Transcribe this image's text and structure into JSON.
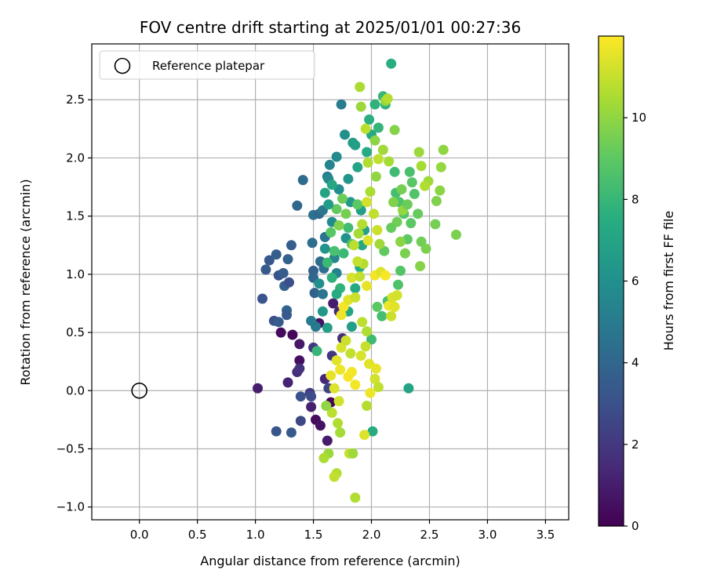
{
  "chart_data": {
    "type": "scatter",
    "title": "FOV centre drift starting at 2025/01/01 00:27:36",
    "xlabel": "Angular distance from reference (arcmin)",
    "ylabel": "Rotation from reference (arcmin)",
    "xlim": [
      -0.41,
      3.7
    ],
    "ylim": [
      -1.11,
      2.98
    ],
    "xticks": [
      "0.0",
      "0.5",
      "1.0",
      "1.5",
      "2.0",
      "2.5",
      "3.0",
      "3.5"
    ],
    "xtick_values": [
      0,
      0.5,
      1.0,
      1.5,
      2.0,
      2.5,
      3.0,
      3.5
    ],
    "yticks": [
      "−1.0",
      "−0.5",
      "0.0",
      "0.5",
      "1.0",
      "1.5",
      "2.0",
      "2.5"
    ],
    "ytick_values": [
      -1.0,
      -0.5,
      0,
      0.5,
      1.0,
      1.5,
      2.0,
      2.5
    ],
    "grid": true,
    "legend": {
      "placement": "top-left",
      "entries": [
        {
          "label": "Reference platepar",
          "marker": "open-circle"
        }
      ]
    },
    "reference_point": {
      "x": 0.0,
      "y": 0.0
    },
    "colorbar": {
      "label": "Hours from first FF file",
      "colormap": "viridis",
      "range": [
        0,
        12
      ],
      "ticks": [
        "0",
        "2",
        "4",
        "6",
        "8",
        "10"
      ],
      "tick_values": [
        0,
        2,
        4,
        6,
        8,
        10
      ]
    },
    "points": [
      [
        1.02,
        0.02,
        1.0
      ],
      [
        1.22,
        0.5,
        0.3
      ],
      [
        1.32,
        0.48,
        0.2
      ],
      [
        1.38,
        0.4,
        0.8
      ],
      [
        1.28,
        0.07,
        1.2
      ],
      [
        1.38,
        0.26,
        0.5
      ],
      [
        1.36,
        0.16,
        1.5
      ],
      [
        1.38,
        0.19,
        1.8
      ],
      [
        1.5,
        0.37,
        2.0
      ],
      [
        1.47,
        -0.02,
        2.2
      ],
      [
        1.52,
        -0.25,
        0.4
      ],
      [
        1.56,
        -0.3,
        0.6
      ],
      [
        1.62,
        -0.43,
        0.9
      ],
      [
        1.48,
        -0.14,
        1.1
      ],
      [
        1.6,
        0.1,
        1.3
      ],
      [
        1.65,
        -0.1,
        0.2
      ],
      [
        1.67,
        0.75,
        0.9
      ],
      [
        1.55,
        0.58,
        0.6
      ],
      [
        1.72,
        0.68,
        1.4
      ],
      [
        1.75,
        0.45,
        1.6
      ],
      [
        1.66,
        0.3,
        2.0
      ],
      [
        1.63,
        0.02,
        2.4
      ],
      [
        1.48,
        -0.05,
        2.8
      ],
      [
        1.39,
        -0.05,
        3.0
      ],
      [
        1.18,
        -0.35,
        3.2
      ],
      [
        1.31,
        -0.36,
        3.4
      ],
      [
        1.39,
        -0.26,
        2.6
      ],
      [
        1.12,
        1.12,
        3.3
      ],
      [
        1.09,
        1.04,
        3.4
      ],
      [
        1.18,
        1.17,
        3.6
      ],
      [
        1.2,
        0.99,
        3.1
      ],
      [
        1.24,
        1.01,
        3.5
      ],
      [
        1.25,
        0.9,
        3.8
      ],
      [
        1.29,
        0.93,
        2.9
      ],
      [
        1.28,
        1.13,
        3.7
      ],
      [
        1.06,
        0.79,
        3.2
      ],
      [
        1.16,
        0.6,
        3.0
      ],
      [
        1.2,
        0.59,
        3.5
      ],
      [
        1.27,
        0.69,
        3.9
      ],
      [
        1.27,
        0.65,
        3.4
      ],
      [
        1.31,
        1.25,
        3.6
      ],
      [
        1.36,
        1.59,
        4.0
      ],
      [
        1.41,
        1.81,
        4.2
      ],
      [
        1.5,
        1.03,
        3.8
      ],
      [
        1.5,
        0.97,
        4.1
      ],
      [
        1.51,
        0.84,
        3.7
      ],
      [
        1.49,
        1.27,
        4.3
      ],
      [
        1.5,
        1.51,
        4.5
      ],
      [
        1.55,
        1.52,
        4.1
      ],
      [
        1.58,
        1.55,
        4.8
      ],
      [
        1.6,
        1.32,
        4.6
      ],
      [
        1.59,
        1.05,
        4.4
      ],
      [
        1.58,
        0.83,
        4.7
      ],
      [
        1.48,
        0.6,
        5.0
      ],
      [
        1.52,
        0.55,
        4.9
      ],
      [
        1.56,
        1.11,
        4.3
      ],
      [
        1.62,
        1.84,
        5.2
      ],
      [
        1.64,
        1.94,
        5.4
      ],
      [
        1.63,
        1.82,
        5.6
      ],
      [
        1.66,
        1.45,
        5.8
      ],
      [
        1.68,
        1.14,
        5.5
      ],
      [
        1.7,
        1.01,
        5.3
      ],
      [
        1.72,
        1.73,
        5.9
      ],
      [
        1.7,
        2.01,
        5.7
      ],
      [
        1.74,
        2.46,
        5.1
      ],
      [
        1.77,
        2.2,
        6.0
      ],
      [
        1.8,
        1.82,
        6.3
      ],
      [
        1.82,
        1.62,
        6.5
      ],
      [
        1.78,
        1.31,
        6.1
      ],
      [
        1.84,
        2.13,
        6.6
      ],
      [
        1.86,
        2.11,
        6.8
      ],
      [
        1.88,
        1.92,
        7.0
      ],
      [
        1.91,
        1.55,
        6.7
      ],
      [
        1.94,
        1.38,
        6.9
      ],
      [
        1.92,
        1.25,
        7.2
      ],
      [
        1.96,
        2.05,
        7.4
      ],
      [
        1.98,
        2.33,
        7.6
      ],
      [
        2.0,
        2.2,
        7.3
      ],
      [
        2.03,
        2.46,
        7.7
      ],
      [
        2.06,
        2.26,
        7.9
      ],
      [
        2.1,
        2.53,
        8.0
      ],
      [
        2.12,
        2.46,
        7.8
      ],
      [
        2.17,
        2.81,
        7.5
      ],
      [
        2.2,
        1.88,
        8.2
      ],
      [
        2.21,
        1.7,
        8.4
      ],
      [
        2.24,
        1.62,
        8.6
      ],
      [
        2.28,
        1.52,
        8.8
      ],
      [
        2.33,
        1.88,
        8.5
      ],
      [
        2.35,
        1.79,
        8.9
      ],
      [
        2.31,
        1.3,
        9.0
      ],
      [
        2.4,
        1.52,
        9.2
      ],
      [
        2.43,
        1.28,
        9.4
      ],
      [
        2.47,
        1.22,
        9.6
      ],
      [
        2.42,
        1.07,
        9.8
      ],
      [
        2.55,
        1.43,
        9.5
      ],
      [
        2.56,
        1.63,
        9.7
      ],
      [
        2.59,
        1.72,
        9.9
      ],
      [
        2.62,
        2.07,
        10.0
      ],
      [
        2.6,
        1.92,
        10.1
      ],
      [
        2.73,
        1.34,
        9.6
      ],
      [
        2.41,
        2.05,
        10.2
      ],
      [
        2.43,
        1.93,
        10.4
      ],
      [
        2.49,
        1.8,
        10.3
      ],
      [
        2.46,
        1.76,
        10.6
      ],
      [
        2.32,
        0.02,
        7.0
      ],
      [
        2.01,
        -0.35,
        7.4
      ],
      [
        1.53,
        0.34,
        8.0
      ],
      [
        1.83,
        0.55,
        6.8
      ],
      [
        1.8,
        0.68,
        7.1
      ],
      [
        1.86,
        0.88,
        7.3
      ],
      [
        1.9,
        1.06,
        7.5
      ],
      [
        1.73,
        0.88,
        7.8
      ],
      [
        1.76,
        1.18,
        8.1
      ],
      [
        1.8,
        1.4,
        8.3
      ],
      [
        1.83,
        1.26,
        8.7
      ],
      [
        1.88,
        1.6,
        9.0
      ],
      [
        1.9,
        2.61,
        10.5
      ],
      [
        1.91,
        2.44,
        10.2
      ],
      [
        2.12,
        2.49,
        10.1
      ],
      [
        2.14,
        2.51,
        10.7
      ],
      [
        1.95,
        2.25,
        10.8
      ],
      [
        2.03,
        2.15,
        9.9
      ],
      [
        2.1,
        2.07,
        10.3
      ],
      [
        2.06,
        1.99,
        10.9
      ],
      [
        1.97,
        1.96,
        10.6
      ],
      [
        2.15,
        1.97,
        10.4
      ],
      [
        2.2,
        2.24,
        9.8
      ],
      [
        2.04,
        1.84,
        10.0
      ],
      [
        2.19,
        1.62,
        9.7
      ],
      [
        2.22,
        1.45,
        9.4
      ],
      [
        2.17,
        1.4,
        9.2
      ],
      [
        2.11,
        1.2,
        9.1
      ],
      [
        2.25,
        1.03,
        8.8
      ],
      [
        2.23,
        0.91,
        8.6
      ],
      [
        2.14,
        0.77,
        8.5
      ],
      [
        2.09,
        0.64,
        8.4
      ],
      [
        2.05,
        0.72,
        9.0
      ],
      [
        2.0,
        0.44,
        8.2
      ],
      [
        1.96,
        0.51,
        10.6
      ],
      [
        1.92,
        0.59,
        10.8
      ],
      [
        1.95,
        0.38,
        11.0
      ],
      [
        1.91,
        0.3,
        11.3
      ],
      [
        1.98,
        0.23,
        11.5
      ],
      [
        2.04,
        0.19,
        11.6
      ],
      [
        2.03,
        0.1,
        11.2
      ],
      [
        2.06,
        0.03,
        10.9
      ],
      [
        1.99,
        -0.02,
        11.7
      ],
      [
        1.96,
        -0.13,
        10.7
      ],
      [
        1.94,
        -0.38,
        11.4
      ],
      [
        1.86,
        0.05,
        11.8
      ],
      [
        1.8,
        0.12,
        11.9
      ],
      [
        1.73,
        0.18,
        11.7
      ],
      [
        1.7,
        0.26,
        11.5
      ],
      [
        1.74,
        0.37,
        11.3
      ],
      [
        1.78,
        0.43,
        11.1
      ],
      [
        1.82,
        0.32,
        10.9
      ],
      [
        1.83,
        0.16,
        11.8
      ],
      [
        1.65,
        0.13,
        11.6
      ],
      [
        1.68,
        0.02,
        11.4
      ],
      [
        1.72,
        -0.09,
        11.2
      ],
      [
        1.66,
        -0.19,
        10.8
      ],
      [
        1.71,
        -0.28,
        10.6
      ],
      [
        1.73,
        -0.36,
        10.4
      ],
      [
        1.63,
        -0.54,
        10.2
      ],
      [
        1.61,
        -0.13,
        10.0
      ],
      [
        1.59,
        -0.58,
        10.5
      ],
      [
        1.7,
        -0.71,
        10.7
      ],
      [
        1.68,
        -0.74,
        10.9
      ],
      [
        1.81,
        -0.54,
        11.0
      ],
      [
        1.84,
        -0.54,
        10.3
      ],
      [
        1.86,
        -0.92,
        10.6
      ],
      [
        1.76,
        0.72,
        11.9
      ],
      [
        1.74,
        0.65,
        11.7
      ],
      [
        1.8,
        0.78,
        11.5
      ],
      [
        1.83,
        0.97,
        11.3
      ],
      [
        1.86,
        0.8,
        11.1
      ],
      [
        1.9,
        0.98,
        10.9
      ],
      [
        1.93,
        1.09,
        10.7
      ],
      [
        1.96,
        0.9,
        11.6
      ],
      [
        2.03,
        0.99,
        11.8
      ],
      [
        2.08,
        1.02,
        11.4
      ],
      [
        2.12,
        0.99,
        11.9
      ],
      [
        2.15,
        0.73,
        11.7
      ],
      [
        2.18,
        0.8,
        11.3
      ],
      [
        2.17,
        0.64,
        11.1
      ],
      [
        2.2,
        0.72,
        11.5
      ],
      [
        2.22,
        0.82,
        11.2
      ],
      [
        1.88,
        1.11,
        11.0
      ],
      [
        1.85,
        1.25,
        10.8
      ],
      [
        1.89,
        1.35,
        10.4
      ],
      [
        1.92,
        1.43,
        10.7
      ],
      [
        1.96,
        1.62,
        11.2
      ],
      [
        1.99,
        1.71,
        10.5
      ],
      [
        2.02,
        1.52,
        10.9
      ],
      [
        2.05,
        1.38,
        11.1
      ],
      [
        2.07,
        1.26,
        10.3
      ],
      [
        1.97,
        1.29,
        11.4
      ],
      [
        2.25,
        1.28,
        9.9
      ],
      [
        2.29,
        1.18,
        9.6
      ],
      [
        2.27,
        1.55,
        10.1
      ],
      [
        2.31,
        1.6,
        9.3
      ],
      [
        2.34,
        1.44,
        9.0
      ],
      [
        2.37,
        1.69,
        8.7
      ],
      [
        2.26,
        1.73,
        9.5
      ],
      [
        1.7,
        1.56,
        9.1
      ],
      [
        1.75,
        1.65,
        9.3
      ],
      [
        1.78,
        1.52,
        9.5
      ],
      [
        1.72,
        1.42,
        9.7
      ],
      [
        1.65,
        1.36,
        8.9
      ],
      [
        1.68,
        1.2,
        8.5
      ],
      [
        1.62,
        1.1,
        8.1
      ],
      [
        1.66,
        0.97,
        7.7
      ],
      [
        1.7,
        0.83,
        7.4
      ],
      [
        1.62,
        0.54,
        6.8
      ],
      [
        1.58,
        0.68,
        6.4
      ],
      [
        1.55,
        0.92,
        6.0
      ],
      [
        1.6,
        1.22,
        6.2
      ],
      [
        1.63,
        1.6,
        6.6
      ],
      [
        1.6,
        1.7,
        7.0
      ],
      [
        1.66,
        1.77,
        7.2
      ]
    ]
  }
}
